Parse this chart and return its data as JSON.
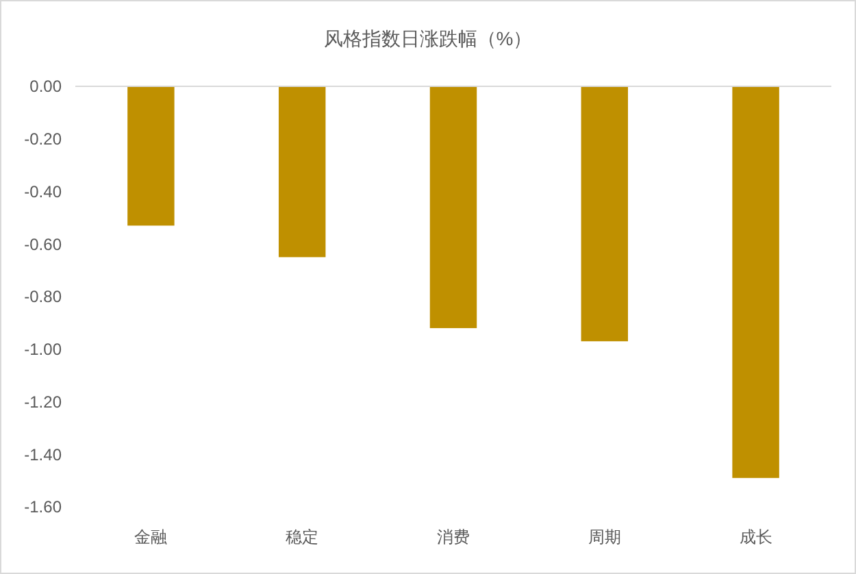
{
  "chart_data": {
    "type": "bar",
    "title": "风格指数日涨跌幅（%）",
    "categories": [
      "金融",
      "稳定",
      "消费",
      "周期",
      "成长"
    ],
    "values": [
      -0.53,
      -0.65,
      -0.92,
      -0.97,
      -1.49
    ],
    "color": "#bf9000",
    "ylim": [
      -1.6,
      0
    ],
    "yticks": [
      {
        "value": 0,
        "label": "0.00"
      },
      {
        "value": -0.2,
        "label": "-0.20"
      },
      {
        "value": -0.4,
        "label": "-0.40"
      },
      {
        "value": -0.6,
        "label": "-0.60"
      },
      {
        "value": -0.8,
        "label": "-0.80"
      },
      {
        "value": -1.0,
        "label": "-1.00"
      },
      {
        "value": -1.2,
        "label": "-1.20"
      },
      {
        "value": -1.4,
        "label": "-1.40"
      },
      {
        "value": -1.6,
        "label": "-1.60"
      }
    ],
    "grid": false
  }
}
